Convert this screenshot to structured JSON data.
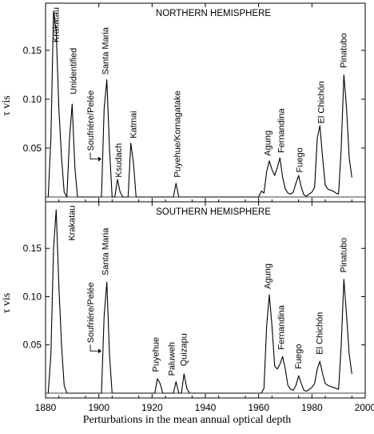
{
  "caption": "Perturbations in the mean annual optical depth",
  "chart_data": [
    {
      "type": "line",
      "title": "NORTHERN HEMISPHERE",
      "ylabel": "τ vis",
      "xlim": [
        1880,
        2000
      ],
      "ylim": [
        0,
        0.19
      ],
      "x_ticks": [
        1880,
        1900,
        1920,
        1940,
        1960,
        1980,
        2000
      ],
      "y_ticks": [
        0.05,
        0.1,
        0.15
      ],
      "y_tick_labels": [
        "0.05",
        "0.10",
        "0.15"
      ],
      "grid": false,
      "series": [
        {
          "points": [
            [
              1881,
              0
            ],
            [
              1882,
              0.06
            ],
            [
              1883,
              0.19
            ],
            [
              1884,
              0.17
            ],
            [
              1885,
              0.09
            ],
            [
              1886,
              0.04
            ],
            [
              1887,
              0.005
            ],
            [
              1888,
              0
            ],
            [
              1889,
              0.06
            ],
            [
              1890,
              0.095
            ],
            [
              1891,
              0.03
            ],
            [
              1892,
              0
            ],
            [
              1901,
              0
            ],
            [
              1902,
              0.09
            ],
            [
              1903,
              0.12
            ],
            [
              1904,
              0.05
            ],
            [
              1905,
              0
            ],
            [
              1906,
              0
            ],
            [
              1907,
              0.018
            ],
            [
              1908,
              0.005
            ],
            [
              1909,
              0
            ],
            [
              1911,
              0
            ],
            [
              1912,
              0.055
            ],
            [
              1913,
              0.035
            ],
            [
              1914,
              0
            ],
            [
              1928,
              0
            ],
            [
              1929,
              0.014
            ],
            [
              1930,
              0
            ],
            [
              1960,
              0
            ],
            [
              1961,
              0.006
            ],
            [
              1962,
              0.004
            ],
            [
              1963,
              0.026
            ],
            [
              1964,
              0.037
            ],
            [
              1965,
              0.028
            ],
            [
              1966,
              0.022
            ],
            [
              1967,
              0.03
            ],
            [
              1968,
              0.04
            ],
            [
              1969,
              0.02
            ],
            [
              1970,
              0.008
            ],
            [
              1971,
              0.004
            ],
            [
              1972,
              0.003
            ],
            [
              1973,
              0.005
            ],
            [
              1974,
              0.014
            ],
            [
              1975,
              0.022
            ],
            [
              1976,
              0.01
            ],
            [
              1977,
              0.002
            ],
            [
              1978,
              0.001
            ],
            [
              1979,
              0.003
            ],
            [
              1980,
              0.005
            ],
            [
              1981,
              0.01
            ],
            [
              1982,
              0.06
            ],
            [
              1983,
              0.073
            ],
            [
              1984,
              0.04
            ],
            [
              1985,
              0.012
            ],
            [
              1986,
              0.008
            ],
            [
              1987,
              0.007
            ],
            [
              1988,
              0.006
            ],
            [
              1989,
              0.004
            ],
            [
              1990,
              0.003
            ],
            [
              1991,
              0.05
            ],
            [
              1992,
              0.125
            ],
            [
              1993,
              0.09
            ],
            [
              1994,
              0.04
            ],
            [
              1995,
              0.02
            ]
          ]
        }
      ],
      "annotations": [
        {
          "text": "Krakatau",
          "x": 1885,
          "y": 0.158
        },
        {
          "text": "Unidentified",
          "x": 1891.5,
          "y": 0.105
        },
        {
          "text": "Santa Maria",
          "x": 1903.5,
          "y": 0.125
        },
        {
          "text": "Soufriére/Pelée",
          "x": 1898,
          "y": 0.047,
          "arrow": true
        },
        {
          "text": "Ksudach",
          "x": 1908.5,
          "y": 0.02
        },
        {
          "text": "Katmai",
          "x": 1914,
          "y": 0.06
        },
        {
          "text": "Puyehue/Komagatake",
          "x": 1930.5,
          "y": 0.02
        },
        {
          "text": "Agung",
          "x": 1964.5,
          "y": 0.042
        },
        {
          "text": "Fernandina",
          "x": 1969.5,
          "y": 0.045
        },
        {
          "text": "Fuego",
          "x": 1976.5,
          "y": 0.025
        },
        {
          "text": "El Chichón",
          "x": 1984.5,
          "y": 0.075
        },
        {
          "text": "Pinatubo",
          "x": 1993,
          "y": 0.132
        }
      ]
    },
    {
      "type": "line",
      "title": "SOUTHERN HEMISPHERE",
      "ylabel": "τ vis",
      "xlabel": "",
      "xlim": [
        1880,
        2000
      ],
      "ylim": [
        0,
        0.19
      ],
      "x_ticks": [
        1880,
        1900,
        1920,
        1940,
        1960,
        1980,
        2000
      ],
      "y_ticks": [
        0.05,
        0.1,
        0.15
      ],
      "y_tick_labels": [
        "0.05",
        "0.10",
        "0.15"
      ],
      "grid": false,
      "series": [
        {
          "points": [
            [
              1881,
              0
            ],
            [
              1882,
              0.04
            ],
            [
              1883,
              0.15
            ],
            [
              1884,
              0.19
            ],
            [
              1885,
              0.11
            ],
            [
              1886,
              0.05
            ],
            [
              1887,
              0.008
            ],
            [
              1888,
              0
            ],
            [
              1901,
              0
            ],
            [
              1902,
              0.08
            ],
            [
              1903,
              0.115
            ],
            [
              1904,
              0.04
            ],
            [
              1905,
              0
            ],
            [
              1921,
              0
            ],
            [
              1922,
              0.015
            ],
            [
              1923,
              0.01
            ],
            [
              1924,
              0
            ],
            [
              1928,
              0
            ],
            [
              1929,
              0.012
            ],
            [
              1930,
              0
            ],
            [
              1931,
              0
            ],
            [
              1932,
              0.02
            ],
            [
              1933,
              0.005
            ],
            [
              1934,
              0
            ],
            [
              1961,
              0
            ],
            [
              1962,
              0.005
            ],
            [
              1963,
              0.07
            ],
            [
              1964,
              0.102
            ],
            [
              1965,
              0.07
            ],
            [
              1966,
              0.028
            ],
            [
              1967,
              0.025
            ],
            [
              1968,
              0.03
            ],
            [
              1969,
              0.038
            ],
            [
              1970,
              0.025
            ],
            [
              1971,
              0.008
            ],
            [
              1972,
              0.004
            ],
            [
              1973,
              0.003
            ],
            [
              1974,
              0.008
            ],
            [
              1975,
              0.018
            ],
            [
              1976,
              0.01
            ],
            [
              1977,
              0.003
            ],
            [
              1978,
              0.002
            ],
            [
              1979,
              0.004
            ],
            [
              1980,
              0.006
            ],
            [
              1981,
              0.01
            ],
            [
              1982,
              0.025
            ],
            [
              1983,
              0.033
            ],
            [
              1984,
              0.02
            ],
            [
              1985,
              0.01
            ],
            [
              1986,
              0.008
            ],
            [
              1987,
              0.007
            ],
            [
              1988,
              0.006
            ],
            [
              1989,
              0.005
            ],
            [
              1990,
              0.004
            ],
            [
              1991,
              0.05
            ],
            [
              1992,
              0.118
            ],
            [
              1993,
              0.08
            ],
            [
              1994,
              0.04
            ],
            [
              1995,
              0.02
            ]
          ]
        }
      ],
      "annotations": [
        {
          "text": "Krakatau",
          "x": 1891,
          "y": 0.158
        },
        {
          "text": "Santa Maria",
          "x": 1903.5,
          "y": 0.122
        },
        {
          "text": "Soufriére/Pelée",
          "x": 1898,
          "y": 0.052,
          "arrow": true
        },
        {
          "text": "Puyehue",
          "x": 1922.5,
          "y": 0.022
        },
        {
          "text": "Paluweh",
          "x": 1928.5,
          "y": 0.018
        },
        {
          "text": "Quizapu",
          "x": 1933,
          "y": 0.028
        },
        {
          "text": "Agung",
          "x": 1964.5,
          "y": 0.108
        },
        {
          "text": "Fernandina",
          "x": 1969.5,
          "y": 0.045
        },
        {
          "text": "Fuego",
          "x": 1976,
          "y": 0.025
        },
        {
          "text": "El Chichón",
          "x": 1984,
          "y": 0.04
        },
        {
          "text": "Pinatubo",
          "x": 1993,
          "y": 0.125
        }
      ]
    }
  ]
}
